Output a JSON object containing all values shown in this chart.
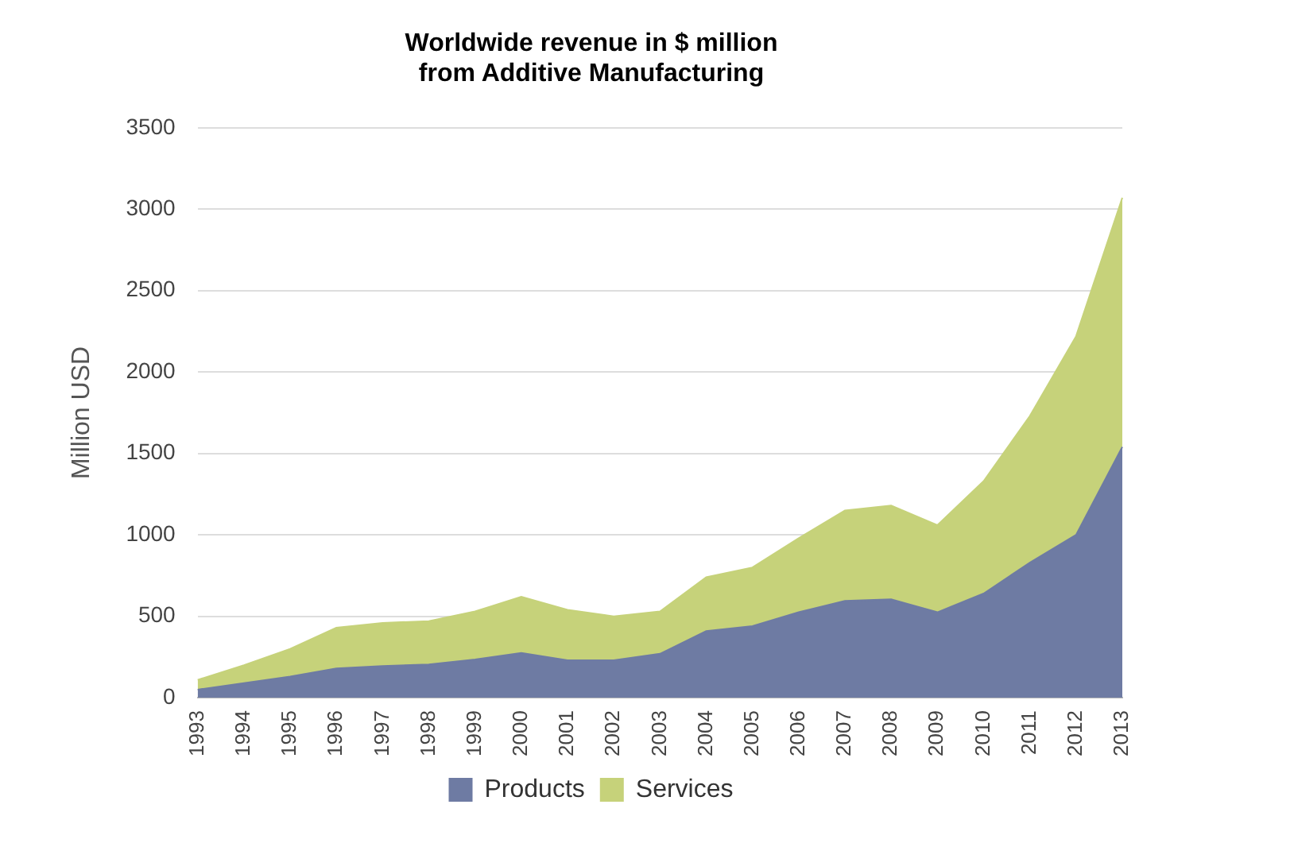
{
  "chart_data": {
    "type": "area",
    "title": "Worldwide revenue in $ million from Additive Manufacturing",
    "ylabel": "Million USD",
    "categories": [
      "1993",
      "1994",
      "1995",
      "1996",
      "1997",
      "1998",
      "1999",
      "2000",
      "2001",
      "2002",
      "2003",
      "2004",
      "2005",
      "2006",
      "2007",
      "2008",
      "2009",
      "2010",
      "2011",
      "2012",
      "2013"
    ],
    "series": [
      {
        "name": "Products",
        "color": "#6e7ba3",
        "values": [
          50,
          90,
          130,
          180,
          195,
          205,
          235,
          275,
          230,
          230,
          270,
          410,
          440,
          525,
          595,
          605,
          525,
          640,
          830,
          1000,
          1540
        ]
      },
      {
        "name": "Services",
        "color": "#c6d27a",
        "values": [
          60,
          110,
          170,
          250,
          265,
          265,
          295,
          345,
          310,
          270,
          260,
          330,
          360,
          455,
          555,
          575,
          535,
          690,
          900,
          1220,
          1530
        ]
      }
    ],
    "stacked": true,
    "ylim": [
      0,
      3500
    ],
    "yticks": [
      0,
      500,
      1000,
      1500,
      2000,
      2500,
      3000,
      3500
    ],
    "grid": "y",
    "legend": "bottom"
  }
}
